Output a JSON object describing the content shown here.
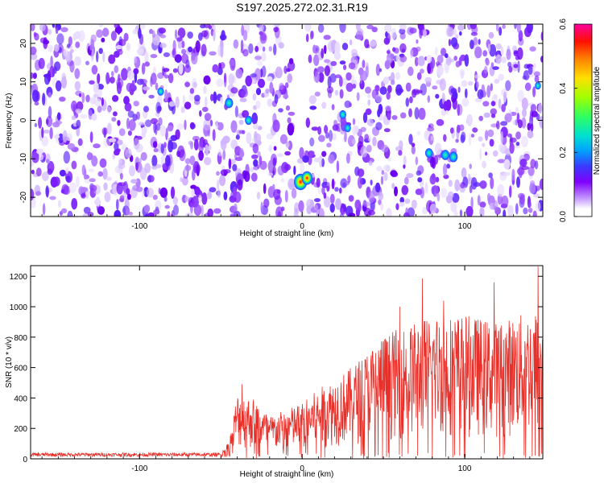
{
  "title": "S197.2025.272.02.31.R19",
  "colors": {
    "line": "#e8302a",
    "axis": "#000000",
    "colormap": [
      "#ffffff",
      "#d8b8ff",
      "#8000ff",
      "#4040ff",
      "#00a0ff",
      "#00e0c0",
      "#40ff40",
      "#c0ff00",
      "#ffe000",
      "#ff8000",
      "#ff0000",
      "#ff00a0"
    ]
  },
  "chart_data": [
    {
      "type": "heatmap",
      "xlabel": "Height of straight line (km)",
      "ylabel": "Frequency (Hz)",
      "xlim": [
        -167,
        148
      ],
      "ylim": [
        -25,
        25
      ],
      "xticks": [
        -100,
        0,
        100
      ],
      "yticks": [
        -20,
        -10,
        0,
        10,
        20
      ],
      "colorbar": {
        "label": "Normalized spectral amplitude",
        "range": [
          0.0,
          0.6
        ],
        "ticks": [
          "0.0",
          "0.2",
          "0.4",
          "0.6"
        ]
      },
      "blobs": [
        {
          "x": -1,
          "y": -16,
          "value": 0.6
        },
        {
          "x": 3,
          "y": -15,
          "value": 0.45
        },
        {
          "x": -45,
          "y": 4.5,
          "value": 0.28
        },
        {
          "x": -33,
          "y": 0,
          "value": 0.22
        },
        {
          "x": 25,
          "y": 1.5,
          "value": 0.2
        },
        {
          "x": 28,
          "y": -2,
          "value": 0.18
        },
        {
          "x": 78,
          "y": -8.5,
          "value": 0.25
        },
        {
          "x": 88,
          "y": -9,
          "value": 0.28
        },
        {
          "x": 93,
          "y": -9.5,
          "value": 0.3
        },
        {
          "x": -87,
          "y": 7.5,
          "value": 0.18
        },
        {
          "x": 145,
          "y": 9,
          "value": 0.15
        }
      ]
    },
    {
      "type": "line",
      "xlabel": "Height of straight line (km)",
      "ylabel": "SNR (10 * v/v)",
      "xlim": [
        -167,
        148
      ],
      "ylim": [
        0,
        1270
      ],
      "xticks": [
        -100,
        0,
        100
      ],
      "yticks": [
        0,
        200,
        400,
        600,
        800,
        1000,
        1200
      ],
      "envelope": [
        {
          "x": -167,
          "y": 40
        },
        {
          "x": -50,
          "y": 40
        },
        {
          "x": -45,
          "y": 120
        },
        {
          "x": -40,
          "y": 430
        },
        {
          "x": -30,
          "y": 400
        },
        {
          "x": -20,
          "y": 280
        },
        {
          "x": 0,
          "y": 370
        },
        {
          "x": 10,
          "y": 460
        },
        {
          "x": 30,
          "y": 600
        },
        {
          "x": 50,
          "y": 820
        },
        {
          "x": 70,
          "y": 900
        },
        {
          "x": 80,
          "y": 950
        },
        {
          "x": 100,
          "y": 950
        },
        {
          "x": 120,
          "y": 900
        },
        {
          "x": 148,
          "y": 1000
        }
      ],
      "peaks": [
        {
          "x": -37,
          "y": 490
        },
        {
          "x": 60,
          "y": 1000
        },
        {
          "x": 74,
          "y": 1185
        },
        {
          "x": 87,
          "y": 1040
        },
        {
          "x": 118,
          "y": 1160
        },
        {
          "x": 145,
          "y": 1265
        }
      ]
    }
  ]
}
